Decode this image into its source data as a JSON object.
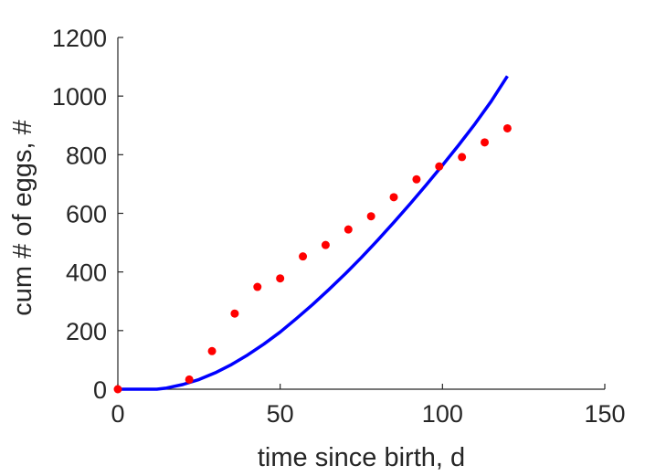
{
  "chart_data": {
    "type": "line",
    "xlabel": "time since birth, d",
    "ylabel": "cum # of eggs, #",
    "xlim": [
      0,
      150
    ],
    "ylim": [
      0,
      1200
    ],
    "xticks": [
      0,
      50,
      100,
      150
    ],
    "yticks": [
      0,
      200,
      400,
      600,
      800,
      1000,
      1200
    ],
    "grid": false,
    "colors": {
      "model": "#0000ff",
      "data": "#ff0000",
      "axes": "#262626"
    },
    "series": [
      {
        "kind": "line",
        "x": [
          0,
          12,
          15,
          20,
          25,
          30,
          35,
          40,
          45,
          50,
          55,
          60,
          65,
          70,
          75,
          80,
          85,
          90,
          95,
          100,
          105,
          110,
          115,
          120
        ],
        "y": [
          0,
          0,
          4,
          16,
          33,
          56,
          84,
          117,
          154,
          195,
          241,
          289,
          340,
          393,
          449,
          508,
          569,
          632,
          697,
          764,
          833,
          905,
          982,
          1068
        ]
      },
      {
        "kind": "scatter",
        "x": [
          0,
          22,
          29,
          36,
          43,
          50,
          57,
          64,
          71,
          78,
          85,
          92,
          99,
          106,
          113,
          120
        ],
        "y": [
          0,
          33,
          130,
          258,
          349,
          378,
          453,
          492,
          545,
          590,
          655,
          716,
          760,
          792,
          842,
          890
        ]
      }
    ]
  }
}
